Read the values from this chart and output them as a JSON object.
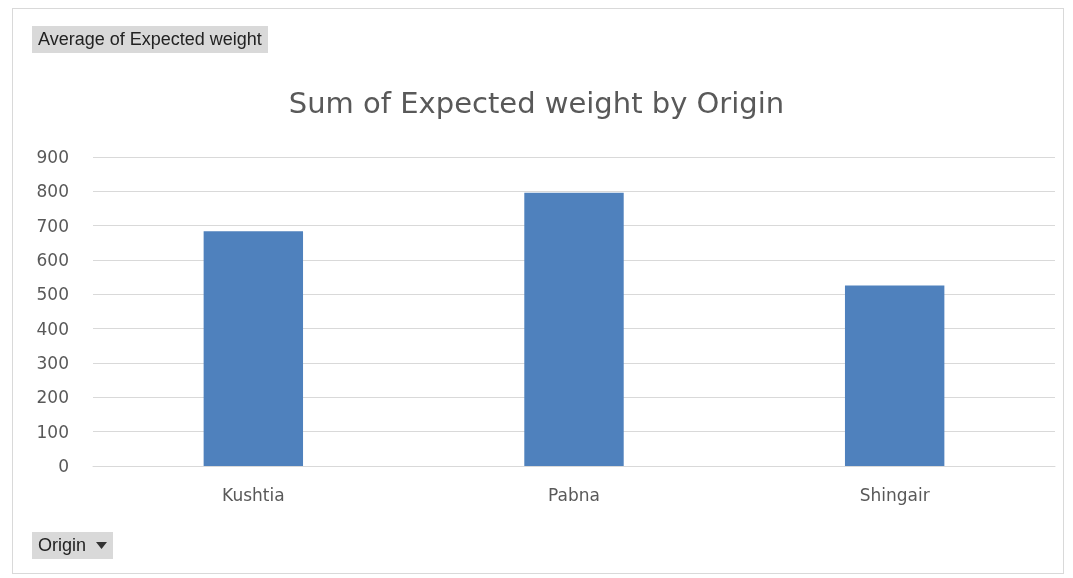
{
  "chart_data": {
    "type": "bar",
    "title": "Sum of Expected weight by Origin",
    "categories": [
      "Kushtia",
      "Pabna",
      "Shingair"
    ],
    "values": [
      684,
      796,
      526
    ],
    "color": "#4f81bd",
    "ylim": [
      0,
      900
    ],
    "yticks": [
      0,
      100,
      200,
      300,
      400,
      500,
      600,
      700,
      800,
      900
    ],
    "grid": "y",
    "annotations": [
      "Average of Expected weight",
      "Origin"
    ]
  }
}
